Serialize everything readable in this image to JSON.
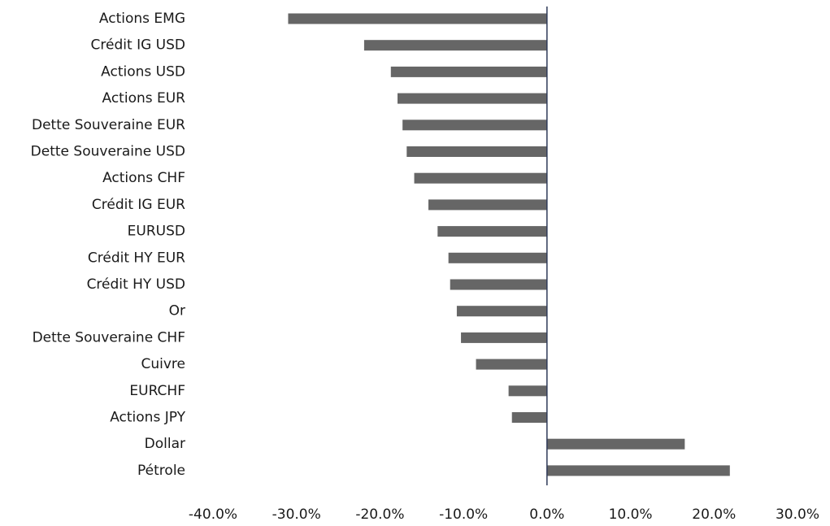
{
  "chart_data": {
    "type": "bar",
    "orientation": "horizontal",
    "title": "",
    "xlabel": "",
    "ylabel": "",
    "categories": [
      "Actions EMG",
      "Crédit IG USD",
      "Actions USD",
      "Actions EUR",
      "Dette Souveraine EUR",
      "Dette Souveraine USD",
      "Actions CHF",
      "Crédit IG EUR",
      "EURUSD",
      "Crédit HY EUR",
      "Crédit HY USD",
      "Or",
      "Dette Souveraine CHF",
      "Cuivre",
      "EURCHF",
      "Actions JPY",
      "Dollar",
      "Pétrole"
    ],
    "values": [
      -31.0,
      -21.9,
      -18.7,
      -17.9,
      -17.3,
      -16.8,
      -15.9,
      -14.2,
      -13.1,
      -11.8,
      -11.6,
      -10.8,
      -10.3,
      -8.5,
      -4.6,
      -4.2,
      16.5,
      21.9
    ],
    "xlim": [
      -40,
      30
    ],
    "xticks": [
      -40,
      -30,
      -20,
      -10,
      0,
      10,
      20,
      30
    ],
    "xtick_labels": [
      "-40.0%",
      "-30.0%",
      "-20.0%",
      "-10.0%",
      "0.0%",
      "10.0%",
      "20.0%",
      "30.0%"
    ],
    "grid": false,
    "legend": "none",
    "colors": {
      "bar": "#666666",
      "axis": "#2e3a59",
      "text": "#1a1a1a"
    }
  }
}
